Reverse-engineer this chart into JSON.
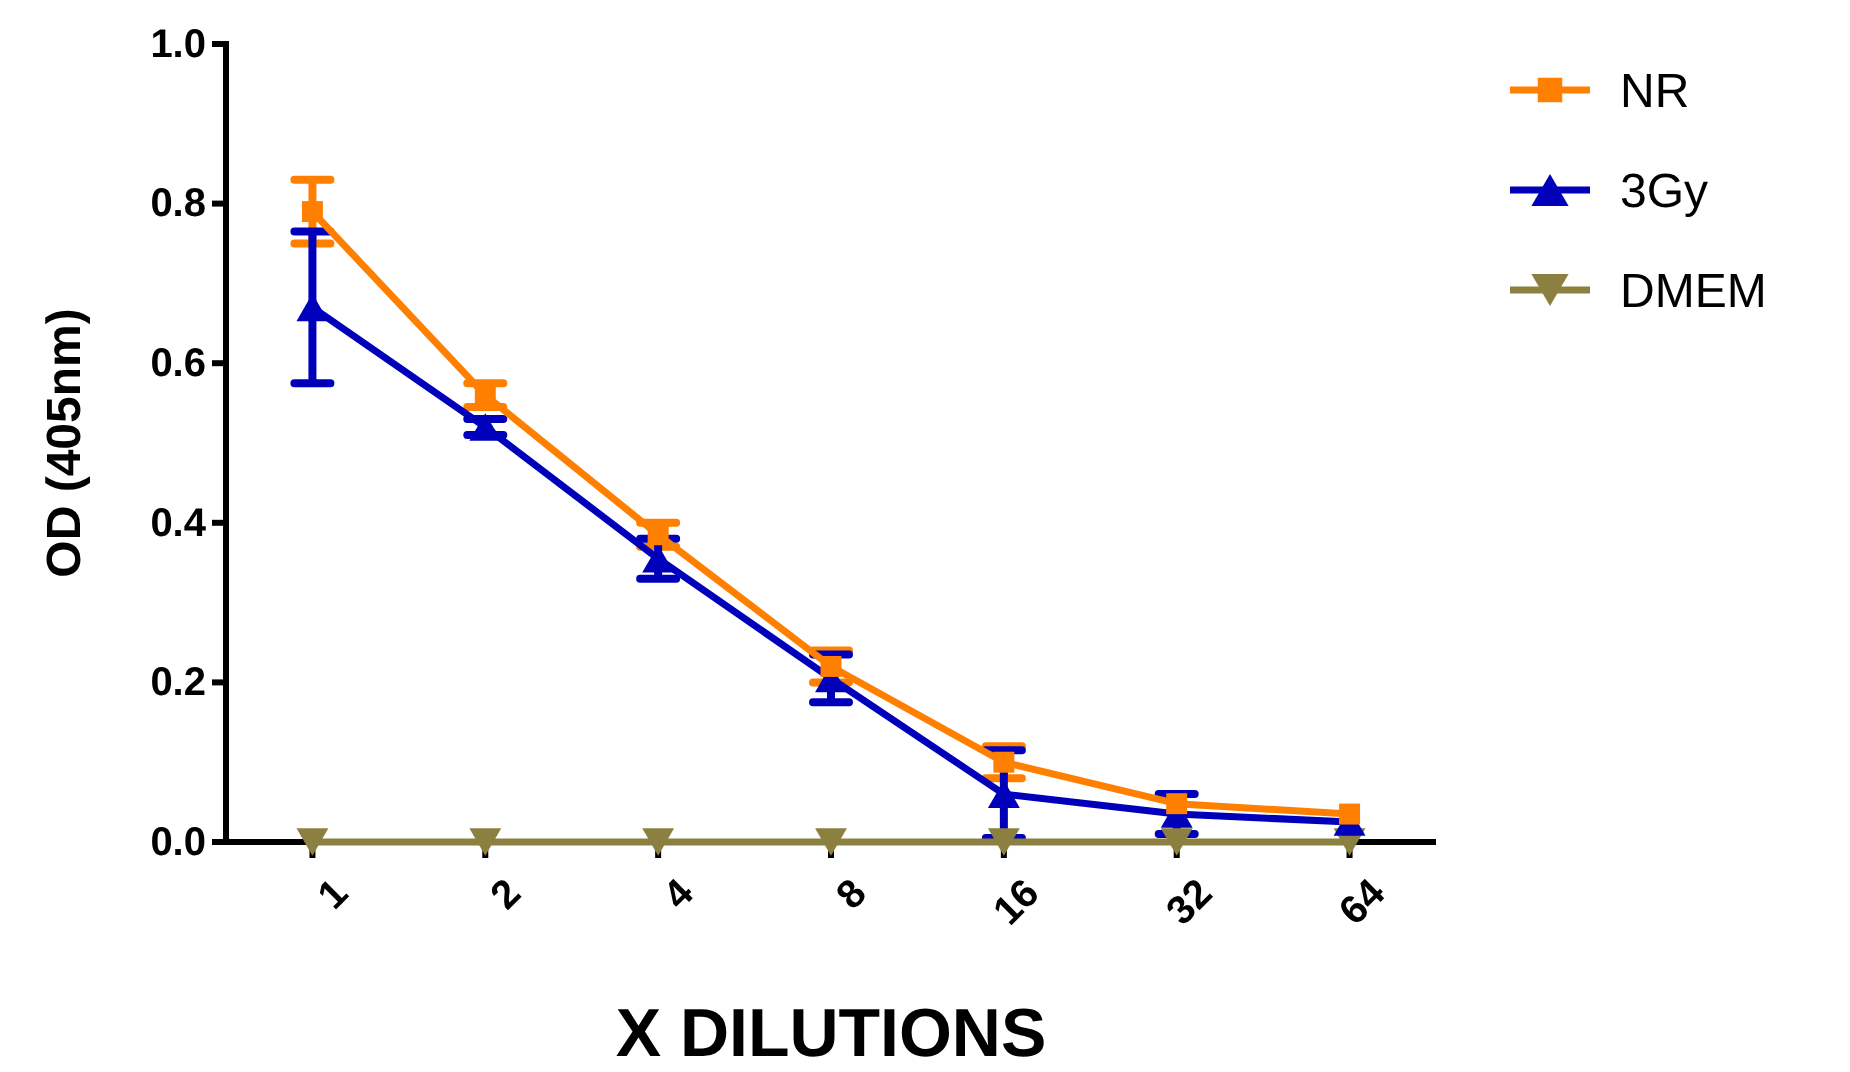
{
  "chart_data": {
    "type": "line",
    "xlabel": "X DILUTIONS",
    "ylabel": "OD (405nm)",
    "categories": [
      "1",
      "2",
      "4",
      "8",
      "16",
      "32",
      "64"
    ],
    "ylim": [
      0,
      1
    ],
    "yticks": [
      {
        "value": 0,
        "label": "0.0"
      },
      {
        "value": 0.2,
        "label": "0.2"
      },
      {
        "value": 0.4,
        "label": "0.4"
      },
      {
        "value": 0.6,
        "label": "0.6"
      },
      {
        "value": 0.8,
        "label": "0.8"
      },
      {
        "value": 1,
        "label": "1.0"
      }
    ],
    "legend": "right",
    "grid": false,
    "line_style": "solid",
    "series": [
      {
        "name": "NR",
        "color": "#ff7f00",
        "marker": "square",
        "values": [
          0.79,
          0.56,
          0.385,
          0.22,
          0.1,
          0.048,
          0.035
        ],
        "errors": [
          0.04,
          0.015,
          0.015,
          0.02,
          0.02,
          null,
          null
        ]
      },
      {
        "name": "3Gy",
        "color": "#0000bb",
        "marker": "triangle",
        "values": [
          0.67,
          0.52,
          0.355,
          0.205,
          0.06,
          0.035,
          0.025
        ],
        "errors": [
          0.095,
          0.01,
          0.025,
          0.03,
          0.055,
          0.025,
          null
        ]
      },
      {
        "name": "DMEM",
        "color": "#8c8040",
        "marker": "triangle-down",
        "values": [
          0,
          0,
          0,
          0,
          0,
          0,
          0
        ]
      }
    ]
  }
}
